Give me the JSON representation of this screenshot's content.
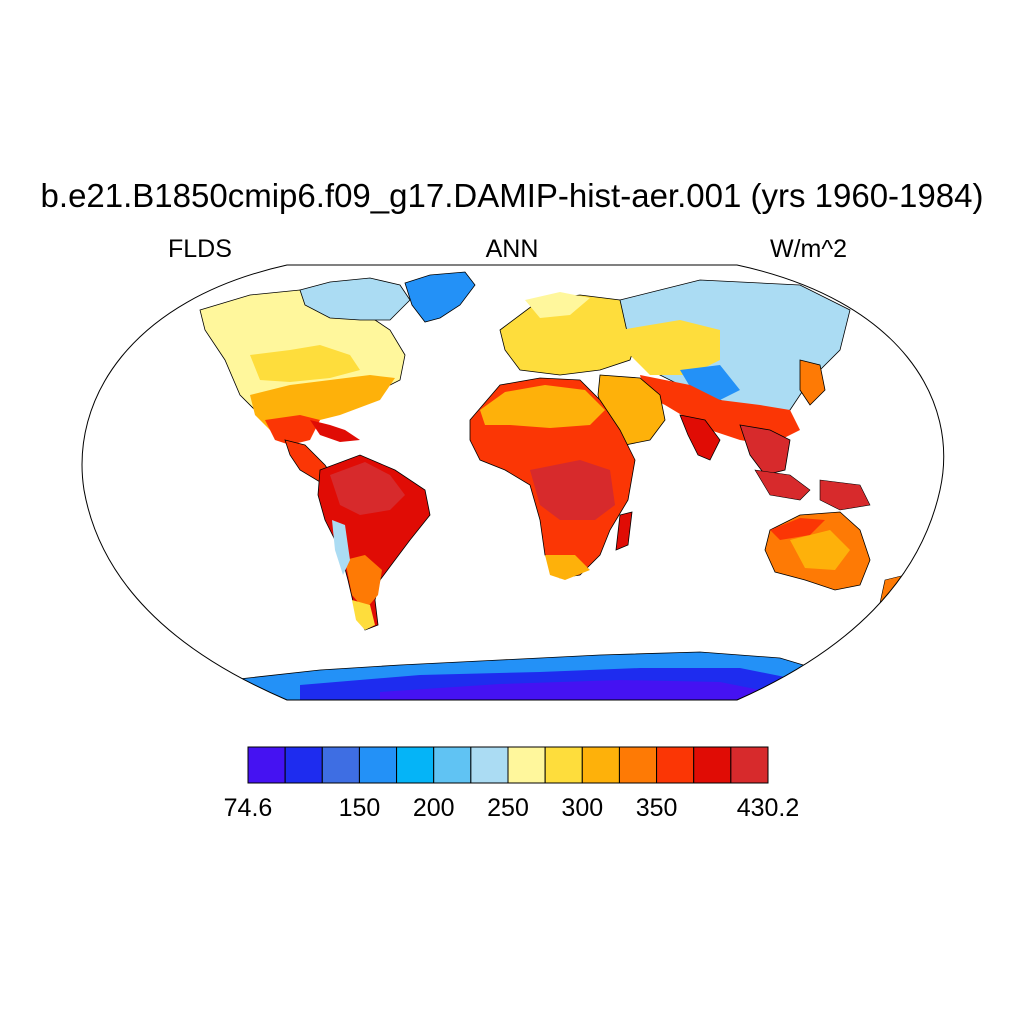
{
  "title": "b.e21.B1850cmip6.f09_g17.DAMIP-hist-aer.001 (yrs 1960-1984)",
  "variable": "FLDS",
  "season": "ANN",
  "units": "W/m^2",
  "colorbar": {
    "colors": [
      "#4512f2",
      "#1e2cef",
      "#3e6ee3",
      "#2391f7",
      "#05b4f7",
      "#60c3f3",
      "#abdcf3",
      "#fff79c",
      "#fedd3c",
      "#feb10a",
      "#fe7a05",
      "#fb3605",
      "#e00c05",
      "#d72a2c"
    ],
    "tick_labels": [
      "74.6",
      "150",
      "200",
      "250",
      "300",
      "350",
      "430.2"
    ],
    "tick_positions": [
      0,
      3,
      5,
      7,
      9,
      11,
      14
    ]
  },
  "map_colors": {
    "ocean": "#ffffff",
    "coastline": "#000000"
  }
}
